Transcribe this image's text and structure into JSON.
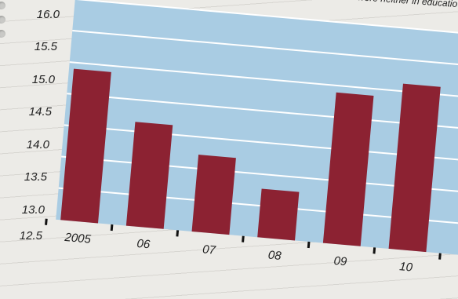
{
  "subtitle_fragment": "se who were neither in educatio",
  "colors": {
    "plot_background": "#a9cce3",
    "bar": "#8c2232",
    "gridline": "#ffffff",
    "paper": "#ecebe7"
  },
  "chart_data": {
    "type": "bar",
    "categories": [
      "2005",
      "06",
      "07",
      "08",
      "09",
      "10"
    ],
    "values": [
      14.9,
      14.15,
      13.72,
      13.27,
      14.89,
      15.12
    ],
    "ylim": [
      12.5,
      16.0
    ],
    "yticks": [
      "16.0",
      "15.5",
      "15.0",
      "14.5",
      "14.0",
      "13.5",
      "13.0",
      "12.5"
    ],
    "grid": true,
    "title": "",
    "xlabel": "",
    "ylabel": ""
  }
}
